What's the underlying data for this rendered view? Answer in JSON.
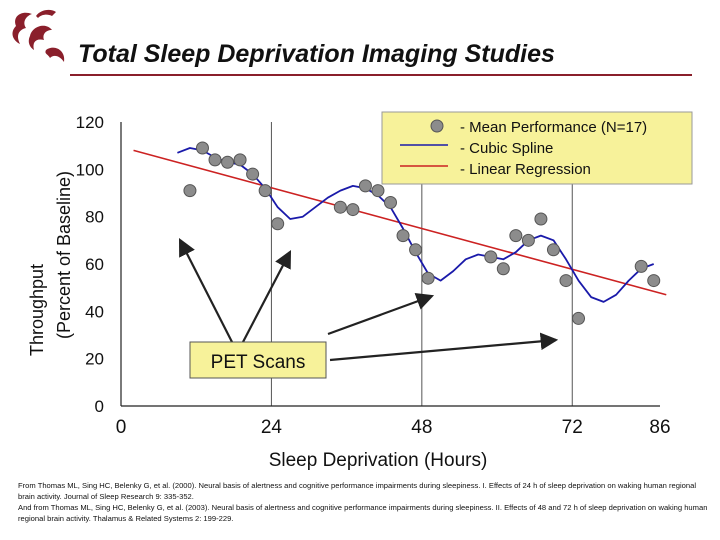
{
  "slide": {
    "title": "Total Sleep Deprivation Imaging Studies",
    "logo": "wsu-cougar-logo",
    "accent_color": "#8a1f2b"
  },
  "citation": {
    "line1": "From Thomas ML, Sing HC, Belenky G, et al. (2000). Neural basis of alertness and cognitive performance impairments during sleepiness. I. Effects of 24 h of sleep deprivation on waking human regional brain activity. Journal of Sleep Research 9: 335-352.",
    "line2": "And from Thomas ML, Sing HC, Belenky G, et al. (2003). Neural basis of alertness and cognitive performance impairments during sleepiness. II. Effects of 48 and 72 h of sleep deprivation on waking human regional brain activity. Thalamus & Related Systems 2: 199-229."
  },
  "chart_data": {
    "type": "scatter",
    "xlabel": "Sleep Deprivation (Hours)",
    "ylabel_line1": "Throughput",
    "ylabel_line2": "(Percent of Baseline)",
    "xlim": [
      0,
      86
    ],
    "ylim": [
      0,
      120
    ],
    "x_ticks": [
      0,
      24,
      48,
      72,
      86
    ],
    "y_ticks": [
      0,
      20,
      40,
      60,
      80,
      100,
      120
    ],
    "grid": "vertical lines at 24, 48, 72",
    "legend_position": "top-right",
    "legend": [
      {
        "label": "- Mean Performance (N=17)",
        "marker": "circle",
        "color": "#888888"
      },
      {
        "label": "- Cubic Spline",
        "marker": "line",
        "color": "#1a1aaa"
      },
      {
        "label": "- Linear Regression",
        "marker": "line",
        "color": "#cc2222"
      }
    ],
    "series": [
      {
        "name": "- Mean Performance (N=17)",
        "x": [
          11,
          13,
          15,
          17,
          19,
          21,
          23,
          25,
          35,
          37,
          39,
          41,
          43,
          45,
          47,
          49,
          59,
          61,
          63,
          65,
          67,
          69,
          71,
          73,
          83,
          85
        ],
        "y": [
          91,
          109,
          104,
          103,
          104,
          98,
          91,
          77,
          84,
          83,
          93,
          91,
          86,
          72,
          66,
          54,
          63,
          58,
          72,
          70,
          79,
          66,
          53,
          37,
          59,
          53
        ]
      },
      {
        "name": "- Linear Regression",
        "x": [
          2,
          87
        ],
        "y": [
          108,
          47
        ]
      },
      {
        "name": "- Cubic Spline",
        "x": [
          9,
          11,
          13,
          15,
          17,
          19,
          21,
          23,
          25,
          27,
          29,
          31,
          33,
          35,
          37,
          39,
          41,
          43,
          45,
          47,
          49,
          51,
          53,
          55,
          57,
          59,
          61,
          63,
          65,
          67,
          69,
          71,
          73,
          75,
          77,
          79,
          81,
          83,
          85
        ],
        "y": [
          107,
          109,
          108,
          105,
          103,
          102,
          98,
          92,
          84,
          79,
          80,
          84,
          88,
          91,
          93,
          92,
          89,
          84,
          75,
          65,
          56,
          53,
          57,
          62,
          64,
          63,
          62,
          65,
          70,
          72,
          70,
          62,
          53,
          46,
          44,
          47,
          53,
          58,
          60
        ]
      }
    ],
    "annotations": [
      {
        "text": "PET Scans",
        "type": "callout-box"
      }
    ],
    "arrows_to_hours": [
      11,
      24,
      48,
      72
    ]
  }
}
